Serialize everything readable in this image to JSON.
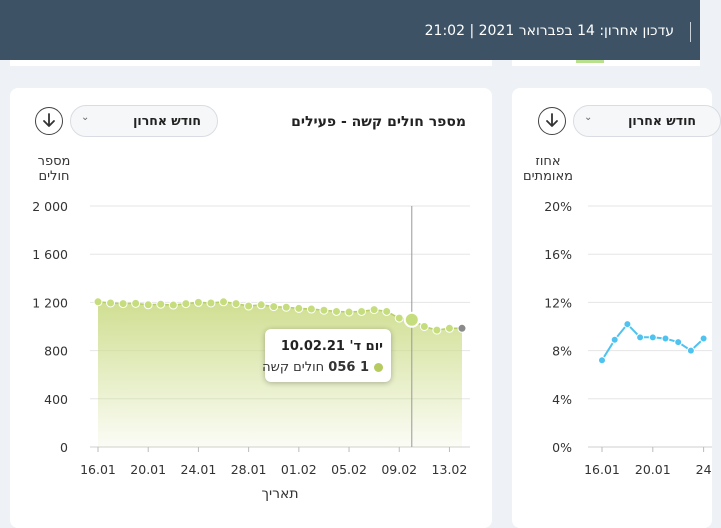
{
  "header": {
    "updated_label": "עדכון אחרון:",
    "updated_date": "14 בפברואר 2021",
    "separator": "|",
    "updated_time": "21:02"
  },
  "colors": {
    "header_bg": "#3d5265",
    "area_fill": "#cddd8c",
    "point": "#c6dd7e",
    "line_blue": "#4ec3f0"
  },
  "left_card": {
    "title": "מספר חולים קשה - פעילים",
    "dropdown_label": "חודש אחרון",
    "chevron_icon": "chevron-down-icon",
    "download_icon": "download-icon",
    "y_label_line1": "מספר",
    "y_label_line2": "חולים",
    "x_label": "תאריך",
    "tooltip": {
      "date": "יום ד' 10.02.21",
      "value": "1 056",
      "series": "חולים קשה"
    }
  },
  "right_card": {
    "dropdown_label": "חודש אחרון",
    "chevron_icon": "chevron-down-icon",
    "download_icon": "download-icon",
    "y_label_line1": "אחוז",
    "y_label_line2": "מאומתים"
  },
  "chart_data": [
    {
      "type": "area",
      "title": "מספר חולים קשה - פעילים",
      "xlabel": "תאריך",
      "ylabel": "מספר חולים",
      "ylim": [
        0,
        2000
      ],
      "yticks": [
        0,
        400,
        800,
        1200,
        1600,
        2000
      ],
      "ytick_labels": [
        "0",
        "400",
        "800",
        "1 200",
        "1 600",
        "2 000"
      ],
      "xtick_labels": [
        "16.01",
        "20.01",
        "24.01",
        "28.01",
        "01.02",
        "05.02",
        "09.02",
        "13.02"
      ],
      "grid": true,
      "highlight_index": 25,
      "x": [
        "16.01",
        "17.01",
        "18.01",
        "19.01",
        "20.01",
        "21.01",
        "22.01",
        "23.01",
        "24.01",
        "25.01",
        "26.01",
        "27.01",
        "28.01",
        "29.01",
        "30.01",
        "31.01",
        "01.02",
        "02.02",
        "03.02",
        "04.02",
        "05.02",
        "06.02",
        "07.02",
        "08.02",
        "09.02",
        "10.02",
        "11.02",
        "12.02",
        "13.02",
        "14.02"
      ],
      "values": [
        1205,
        1195,
        1190,
        1192,
        1180,
        1185,
        1178,
        1190,
        1200,
        1195,
        1205,
        1190,
        1170,
        1180,
        1165,
        1160,
        1150,
        1145,
        1135,
        1125,
        1120,
        1125,
        1140,
        1125,
        1070,
        1056,
        1000,
        970,
        985,
        985
      ]
    },
    {
      "type": "line",
      "ylabel": "אחוז מאומתים",
      "ylim": [
        0,
        20
      ],
      "yticks": [
        0,
        4,
        8,
        12,
        16,
        20
      ],
      "ytick_labels": [
        "0%",
        "4%",
        "8%",
        "12%",
        "16%",
        "20%"
      ],
      "xtick_labels": [
        "16.01",
        "20.01",
        "24"
      ],
      "grid": true,
      "x": [
        "16.01",
        "17.01",
        "18.01",
        "19.01",
        "20.01",
        "21.01",
        "22.01",
        "23.01",
        "24.01"
      ],
      "values": [
        7.2,
        8.9,
        10.2,
        9.1,
        9.1,
        9.0,
        8.7,
        8.0,
        9.0
      ]
    }
  ]
}
